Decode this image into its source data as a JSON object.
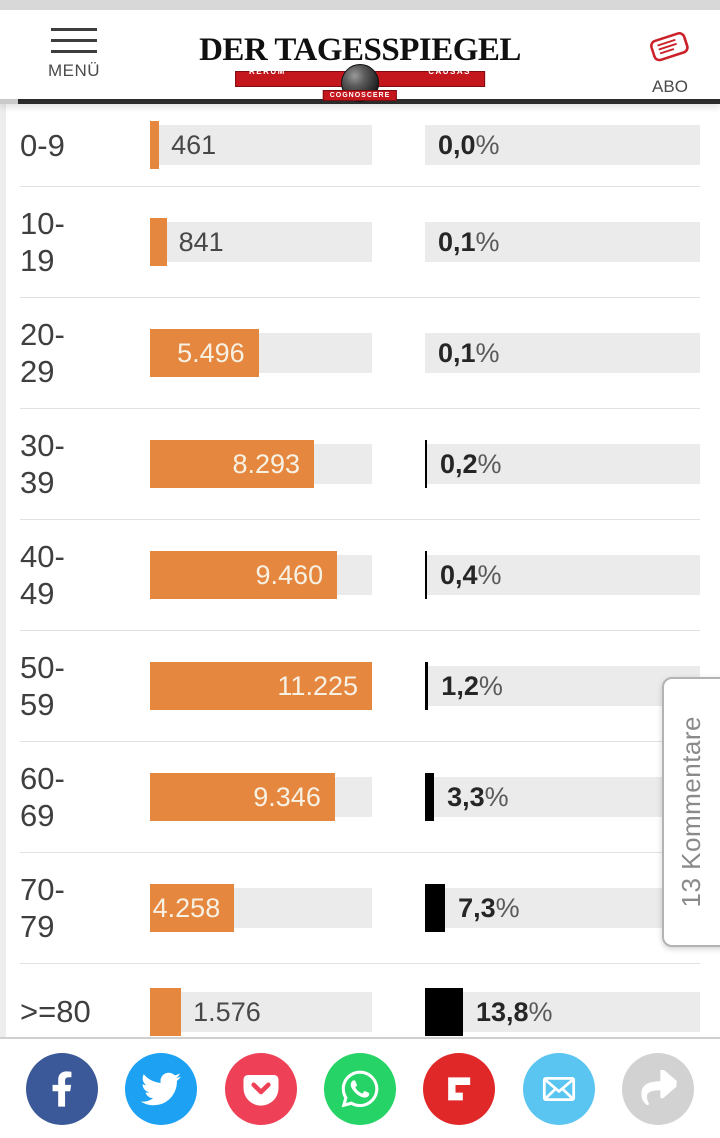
{
  "header": {
    "menu_label": "MENÜ",
    "abo_label": "ABO",
    "logo_title": "DER TAGESSPIEGEL",
    "logo_motto_left": "RERUM",
    "logo_motto_right": "CAUSAS",
    "logo_motto_bottom": "COGNOSCERE"
  },
  "comments_tab": {
    "label": "13 Kommentare"
  },
  "chart_data": {
    "type": "bar",
    "categories": [
      "0-9",
      "10-19",
      "20-29",
      "30-39",
      "40-49",
      "50-59",
      "60-69",
      "70-79",
      ">=80"
    ],
    "category_lines": [
      [
        "0-9"
      ],
      [
        "10-",
        "19"
      ],
      [
        "20-",
        "29"
      ],
      [
        "30-",
        "39"
      ],
      [
        "40-",
        "49"
      ],
      [
        "50-",
        "59"
      ],
      [
        "60-",
        "69"
      ],
      [
        "70-",
        "79"
      ],
      [
        ">=80"
      ]
    ],
    "series": [
      {
        "name": "cases-count",
        "values": [
          461,
          841,
          5496,
          8293,
          9460,
          11225,
          9346,
          4258,
          1576
        ],
        "labels": [
          "461",
          "841",
          "5.496",
          "8.293",
          "9.460",
          "11.225",
          "9.346",
          "4.258",
          "1.576"
        ],
        "color": "#e5873e",
        "axis_max": 11225
      },
      {
        "name": "rate-percent",
        "values": [
          0.0,
          0.1,
          0.1,
          0.2,
          0.4,
          1.2,
          3.3,
          7.3,
          13.8
        ],
        "labels": [
          "0,0%",
          "0,1%",
          "0,1%",
          "0,2%",
          "0,4%",
          "1,2%",
          "3,3%",
          "7,3%",
          "13,8%"
        ],
        "color": "#000000",
        "axis_max": 100
      }
    ],
    "track_color": "#ebebeb",
    "grid": false,
    "legend_position": "none"
  },
  "share_bar": {
    "icons": [
      {
        "name": "facebook",
        "color": "#3b5998"
      },
      {
        "name": "twitter",
        "color": "#1da1f2"
      },
      {
        "name": "pocket",
        "color": "#ee4056"
      },
      {
        "name": "whatsapp",
        "color": "#25d366"
      },
      {
        "name": "flipboard",
        "color": "#e12828"
      },
      {
        "name": "email",
        "color": "#5bc5f2"
      },
      {
        "name": "share",
        "color": "#d2d2d2"
      }
    ]
  },
  "colors": {
    "bar_orange": "#e5873e",
    "bar_black": "#000000",
    "accent_red": "#c4161d",
    "track_gray": "#ebebeb"
  }
}
